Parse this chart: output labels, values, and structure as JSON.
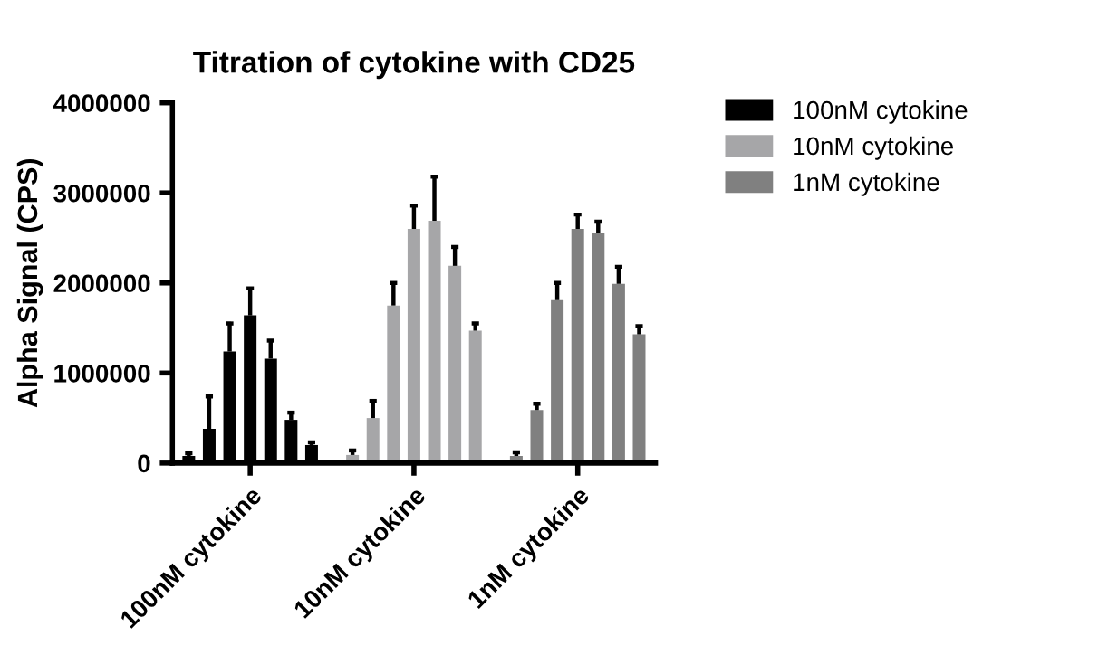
{
  "chart_data": {
    "type": "bar",
    "title": "Titration of cytokine with CD25",
    "ylabel": "Alpha Signal (CPS)",
    "categories": [
      null,
      null,
      null,
      "100nM cytokine",
      null,
      null,
      null,
      null,
      null,
      null,
      null,
      "10nM cytokine",
      null,
      null,
      null,
      null,
      null,
      null,
      null,
      "1nM cytokine",
      null,
      null,
      null
    ],
    "series": [
      {
        "name": "100nM cytokine",
        "color": "#000000",
        "values": [
          80000,
          380000,
          1240000,
          1640000,
          1160000,
          480000,
          200000,
          null,
          null,
          null,
          null,
          null,
          null,
          null,
          null,
          null,
          null,
          null,
          null,
          null,
          null,
          null,
          null
        ],
        "errors": [
          [
            80000,
            110000
          ],
          [
            380000,
            740000
          ],
          [
            1240000,
            1550000
          ],
          [
            1640000,
            1940000
          ],
          [
            1160000,
            1360000
          ],
          [
            480000,
            560000
          ],
          [
            200000,
            230000
          ],
          null,
          null,
          null,
          null,
          null,
          null,
          null,
          null,
          null,
          null,
          null,
          null,
          null,
          null,
          null,
          null
        ]
      },
      {
        "name": "10nM cytokine",
        "color": "#a6a6a8",
        "values": [
          null,
          null,
          null,
          null,
          null,
          null,
          null,
          null,
          90000,
          500000,
          1750000,
          2600000,
          2690000,
          2190000,
          1470000,
          null,
          null,
          null,
          null,
          null,
          null,
          null,
          null
        ],
        "errors": [
          null,
          null,
          null,
          null,
          null,
          null,
          null,
          null,
          [
            90000,
            140000
          ],
          [
            500000,
            690000
          ],
          [
            1750000,
            2000000
          ],
          [
            2600000,
            2860000
          ],
          [
            2690000,
            3180000
          ],
          [
            2190000,
            2400000
          ],
          [
            1470000,
            1550000
          ],
          null,
          null,
          null,
          null,
          null,
          null,
          null,
          null
        ]
      },
      {
        "name": "1nM cytokine",
        "color": "#808080",
        "values": [
          null,
          null,
          null,
          null,
          null,
          null,
          null,
          null,
          null,
          null,
          null,
          null,
          null,
          null,
          null,
          null,
          80000,
          590000,
          1810000,
          2600000,
          2550000,
          1990000,
          1430000
        ],
        "errors": [
          null,
          null,
          null,
          null,
          null,
          null,
          null,
          null,
          null,
          null,
          null,
          null,
          null,
          null,
          null,
          null,
          [
            80000,
            120000
          ],
          [
            590000,
            660000
          ],
          [
            1810000,
            2000000
          ],
          [
            2600000,
            2760000
          ],
          [
            2550000,
            2680000
          ],
          [
            1990000,
            2180000
          ],
          [
            1430000,
            1520000
          ]
        ]
      }
    ],
    "ylim": [
      0,
      4000000
    ],
    "yticks": [
      0,
      1000000,
      2000000,
      3000000,
      4000000
    ],
    "grid": false,
    "legend": "top right"
  }
}
